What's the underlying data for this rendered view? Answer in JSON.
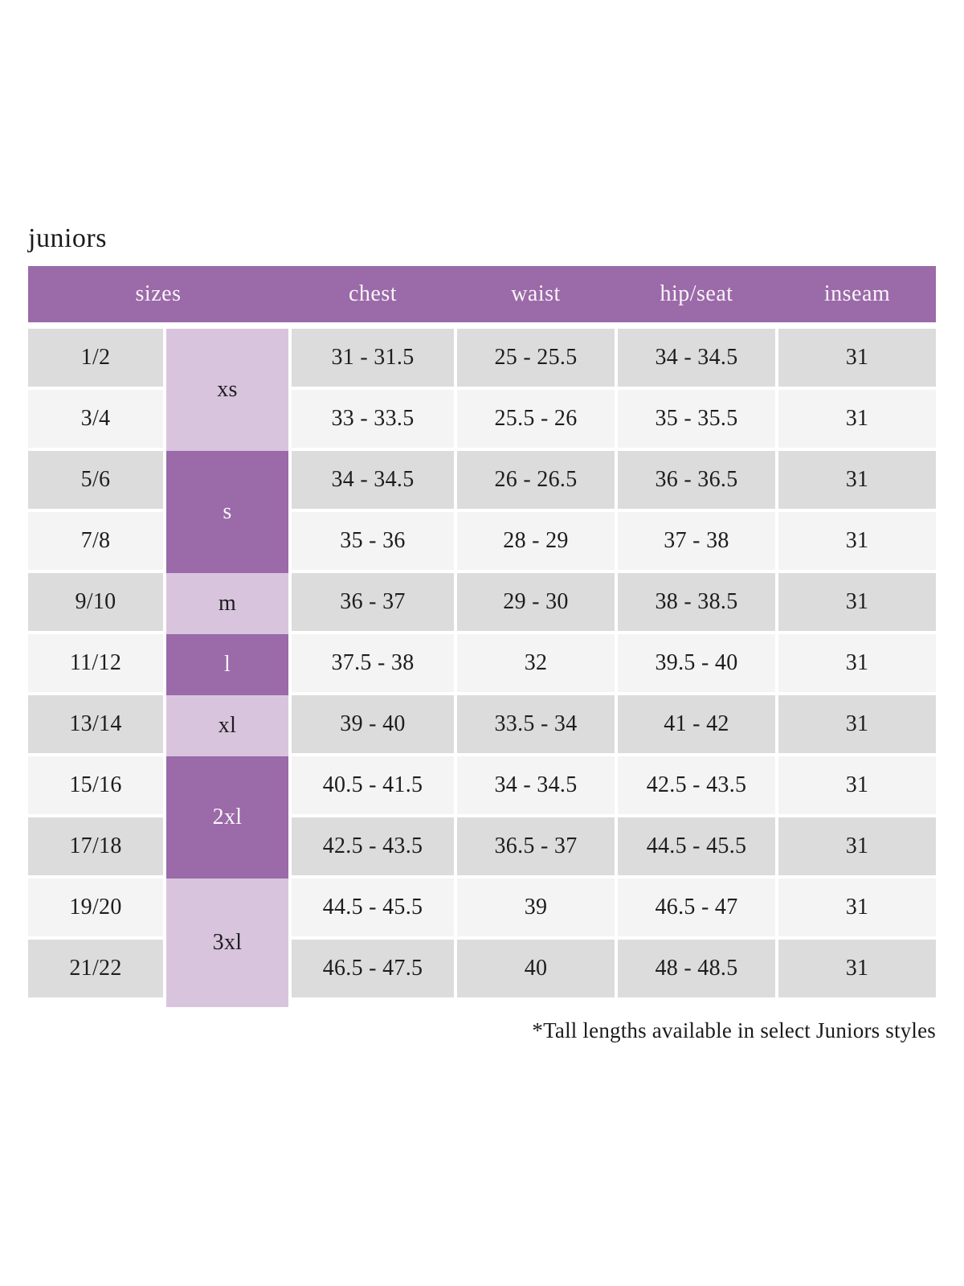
{
  "title": "juniors",
  "footnote": "*Tall lengths available in select Juniors styles",
  "colors": {
    "header_purple": "#9b6aa8",
    "letter_dark_purple": "#9b6aa8",
    "letter_lavender": "#d9c4dd",
    "row_grey": "#dcdcdc",
    "row_light": "#f4f4f4",
    "text_dark": "#1d1d1f",
    "text_light": "#f9f4f9"
  },
  "table": {
    "headers": [
      "sizes",
      "chest",
      "waist",
      "hip/seat",
      "inseam"
    ],
    "size_groups": [
      {
        "label": "xs",
        "start": 0,
        "span": 2,
        "tone": "light"
      },
      {
        "label": "s",
        "start": 2,
        "span": 2,
        "tone": "dark"
      },
      {
        "label": "m",
        "start": 4,
        "span": 1,
        "tone": "light"
      },
      {
        "label": "l",
        "start": 5,
        "span": 1,
        "tone": "dark"
      },
      {
        "label": "xl",
        "start": 6,
        "span": 1,
        "tone": "light"
      },
      {
        "label": "2xl",
        "start": 7,
        "span": 2,
        "tone": "dark"
      },
      {
        "label": "3xl",
        "start": 9,
        "span": 2,
        "tone": "light",
        "overhang": true
      }
    ],
    "rows": [
      {
        "size": "1/2",
        "chest": "31 - 31.5",
        "waist": "25 - 25.5",
        "hip_seat": "34 - 34.5",
        "inseam": "31"
      },
      {
        "size": "3/4",
        "chest": "33 - 33.5",
        "waist": "25.5 - 26",
        "hip_seat": "35 - 35.5",
        "inseam": "31"
      },
      {
        "size": "5/6",
        "chest": "34 - 34.5",
        "waist": "26 - 26.5",
        "hip_seat": "36 - 36.5",
        "inseam": "31"
      },
      {
        "size": "7/8",
        "chest": "35 - 36",
        "waist": "28 - 29",
        "hip_seat": "37 - 38",
        "inseam": "31"
      },
      {
        "size": "9/10",
        "chest": "36 - 37",
        "waist": "29 - 30",
        "hip_seat": "38 - 38.5",
        "inseam": "31"
      },
      {
        "size": "11/12",
        "chest": "37.5 - 38",
        "waist": "32",
        "hip_seat": "39.5 - 40",
        "inseam": "31"
      },
      {
        "size": "13/14",
        "chest": "39 - 40",
        "waist": "33.5 - 34",
        "hip_seat": "41 - 42",
        "inseam": "31"
      },
      {
        "size": "15/16",
        "chest": "40.5 - 41.5",
        "waist": "34 - 34.5",
        "hip_seat": "42.5 - 43.5",
        "inseam": "31"
      },
      {
        "size": "17/18",
        "chest": "42.5 - 43.5",
        "waist": "36.5 - 37",
        "hip_seat": "44.5 - 45.5",
        "inseam": "31"
      },
      {
        "size": "19/20",
        "chest": "44.5 - 45.5",
        "waist": "39",
        "hip_seat": "46.5 - 47",
        "inseam": "31"
      },
      {
        "size": "21/22",
        "chest": "46.5 - 47.5",
        "waist": "40",
        "hip_seat": "48 - 48.5",
        "inseam": "31"
      }
    ]
  }
}
